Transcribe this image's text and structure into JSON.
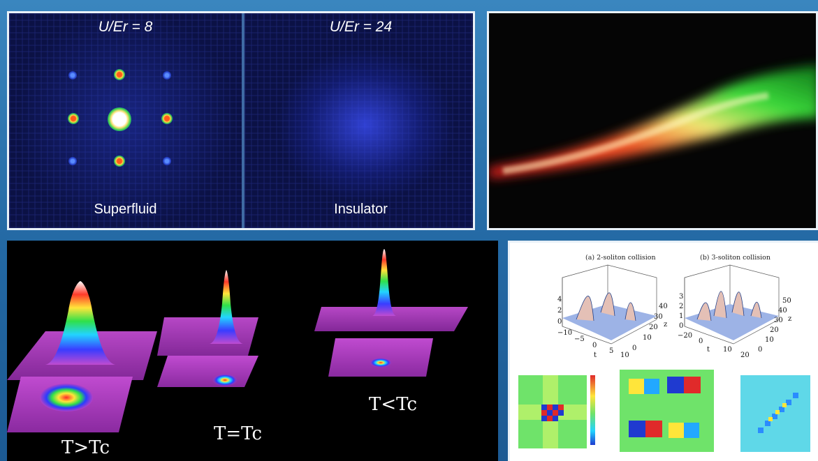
{
  "lattice_panel": {
    "left_title": "U/Er = 8",
    "right_title": "U/Er = 24",
    "left_label": "Superfluid",
    "right_label": "Insulator"
  },
  "bec_panel": {
    "labels": [
      "T>Tc",
      "T=Tc",
      "T<Tc"
    ]
  },
  "soliton_panel": {
    "caption_a": "(a) 2-soliton collision",
    "caption_b": "(b) 3-soliton collision",
    "plot_a_z_ticks": [
      "4",
      "2",
      "0"
    ],
    "plot_a_x_ticks": [
      "−10",
      "−5",
      "0",
      "5",
      "10"
    ],
    "plot_a_y_ticks": [
      "40",
      "30",
      "20",
      "10",
      "0"
    ],
    "plot_a_x_label": "t",
    "plot_a_y_label": "z",
    "plot_b_z_ticks": [
      "3",
      "2",
      "1",
      "0"
    ],
    "plot_b_x_ticks": [
      "−20",
      "0",
      "10",
      "20"
    ],
    "plot_b_y_ticks": [
      "50",
      "40",
      "30",
      "20",
      "10",
      "0"
    ],
    "plot_b_x_label": "t",
    "plot_b_y_label": "z"
  },
  "colors": {
    "background": "#2368a3",
    "frame": "#e9f1f8",
    "lattice_bg": "#0b1145",
    "soliton_surface": "#9db3e6"
  }
}
